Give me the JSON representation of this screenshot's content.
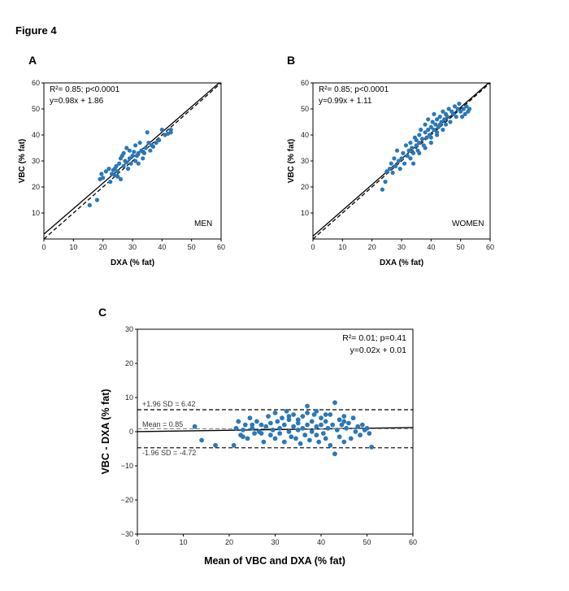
{
  "figure_title": "Figure 4",
  "chart_data": [
    {
      "panel": "A",
      "type": "scatter",
      "group_label": "MEN",
      "xlabel": "DXA (% fat)",
      "ylabel": "VBC (% fat)",
      "xlim": [
        0,
        60
      ],
      "ylim": [
        0,
        60
      ],
      "xticks": [
        0,
        10,
        20,
        30,
        40,
        50,
        60
      ],
      "yticks": [
        10,
        20,
        30,
        40,
        50,
        60
      ],
      "stats_line1": "R²= 0.85; p<0.0001",
      "stats_line2": "y=0.98x + 1.86",
      "fit": {
        "slope": 0.98,
        "intercept": 1.86,
        "style": "solid"
      },
      "identity": {
        "slope": 1,
        "intercept": 0,
        "style": "dashed"
      },
      "color": "#2b78b8",
      "points": [
        [
          15.5,
          13
        ],
        [
          18,
          15
        ],
        [
          19,
          23
        ],
        [
          19.5,
          25
        ],
        [
          20,
          23.5
        ],
        [
          21,
          26
        ],
        [
          22,
          27
        ],
        [
          22.5,
          22
        ],
        [
          23,
          25
        ],
        [
          23.5,
          26.5
        ],
        [
          24,
          27
        ],
        [
          24,
          24.5
        ],
        [
          24.5,
          28
        ],
        [
          25,
          26
        ],
        [
          25,
          24
        ],
        [
          25.5,
          29
        ],
        [
          26,
          23
        ],
        [
          26,
          31
        ],
        [
          26.5,
          32
        ],
        [
          27,
          28
        ],
        [
          27,
          33
        ],
        [
          27.5,
          30
        ],
        [
          28,
          29.5
        ],
        [
          28,
          35
        ],
        [
          28.5,
          27
        ],
        [
          29,
          31
        ],
        [
          29,
          34
        ],
        [
          29.5,
          29
        ],
        [
          30,
          32
        ],
        [
          30.5,
          33.5
        ],
        [
          31,
          30
        ],
        [
          31,
          36
        ],
        [
          31.5,
          32
        ],
        [
          32,
          33
        ],
        [
          32,
          29
        ],
        [
          32.5,
          37
        ],
        [
          33,
          34
        ],
        [
          33.5,
          31
        ],
        [
          34,
          33
        ],
        [
          34.5,
          35
        ],
        [
          35,
          41
        ],
        [
          35.5,
          37
        ],
        [
          36,
          34
        ],
        [
          36.5,
          36
        ],
        [
          37,
          35.5
        ],
        [
          38,
          37
        ],
        [
          39,
          38
        ],
        [
          40,
          42
        ],
        [
          41,
          40
        ],
        [
          42,
          40.5
        ],
        [
          43,
          42
        ],
        [
          43,
          41
        ]
      ]
    },
    {
      "panel": "B",
      "type": "scatter",
      "group_label": "WOMEN",
      "xlabel": "DXA (% fat)",
      "ylabel": "VBC (% fat)",
      "xlim": [
        0,
        60
      ],
      "ylim": [
        0,
        60
      ],
      "xticks": [
        0,
        10,
        20,
        30,
        40,
        50,
        60
      ],
      "yticks": [
        10,
        20,
        30,
        40,
        50,
        60
      ],
      "stats_line1": "R²= 0.85; p<0.0001",
      "stats_line2": "y=0.99x + 1.11",
      "fit": {
        "slope": 0.99,
        "intercept": 1.11,
        "style": "solid"
      },
      "identity": {
        "slope": 1,
        "intercept": 0,
        "style": "dashed"
      },
      "color": "#2b78b8",
      "points": [
        [
          23.5,
          19
        ],
        [
          24.5,
          22
        ],
        [
          25,
          26
        ],
        [
          26,
          27
        ],
        [
          26.5,
          29
        ],
        [
          27,
          25.5
        ],
        [
          27.5,
          31
        ],
        [
          28,
          28
        ],
        [
          28.5,
          34
        ],
        [
          29,
          30
        ],
        [
          29.5,
          27
        ],
        [
          30,
          31
        ],
        [
          30.5,
          33
        ],
        [
          31,
          29
        ],
        [
          31.5,
          36
        ],
        [
          32,
          32
        ],
        [
          32.5,
          34
        ],
        [
          33,
          37
        ],
        [
          33,
          31
        ],
        [
          33.5,
          35
        ],
        [
          34,
          33
        ],
        [
          34.5,
          39
        ],
        [
          35,
          36
        ],
        [
          35,
          38
        ],
        [
          35.5,
          34
        ],
        [
          36,
          40
        ],
        [
          36,
          37
        ],
        [
          36.5,
          42
        ],
        [
          37,
          38.5
        ],
        [
          37.5,
          36
        ],
        [
          38,
          41
        ],
        [
          38,
          44
        ],
        [
          38.5,
          39
        ],
        [
          39,
          42
        ],
        [
          39,
          46
        ],
        [
          39.5,
          40
        ],
        [
          40,
          43
        ],
        [
          40,
          37
        ],
        [
          40.5,
          45
        ],
        [
          41,
          42
        ],
        [
          41,
          48
        ],
        [
          41.5,
          44
        ],
        [
          42,
          40
        ],
        [
          42,
          46
        ],
        [
          42.5,
          43
        ],
        [
          43,
          47
        ],
        [
          43,
          44
        ],
        [
          43.5,
          45
        ],
        [
          44,
          49
        ],
        [
          44,
          42
        ],
        [
          44.5,
          46
        ],
        [
          45,
          48
        ],
        [
          45,
          44
        ],
        [
          45.5,
          47
        ],
        [
          46,
          50
        ],
        [
          46.5,
          45
        ],
        [
          47,
          49
        ],
        [
          47.5,
          48
        ],
        [
          48,
          51
        ],
        [
          48.5,
          47
        ],
        [
          49,
          50
        ],
        [
          49.5,
          52
        ],
        [
          50,
          49
        ],
        [
          50.5,
          47
        ],
        [
          51,
          50
        ],
        [
          51.5,
          48
        ],
        [
          52,
          51
        ],
        [
          52.5,
          49
        ],
        [
          53,
          50
        ],
        [
          34,
          29
        ],
        [
          36,
          33
        ],
        [
          38,
          35
        ],
        [
          40,
          39
        ],
        [
          42,
          41
        ]
      ]
    },
    {
      "panel": "C",
      "type": "scatter",
      "xlabel": "Mean of VBC and DXA (% fat)",
      "ylabel": "VBC - DXA (% fat)",
      "xlim": [
        0,
        60
      ],
      "ylim": [
        -30,
        30
      ],
      "xticks": [
        0,
        10,
        20,
        30,
        40,
        50,
        60
      ],
      "yticks": [
        -30,
        -20,
        -10,
        0,
        10,
        20,
        30
      ],
      "ytick_labels": [
        "−30",
        "−20",
        "−10",
        "0",
        "10",
        "20",
        "30"
      ],
      "stats_line1": "R²= 0.01; p=0.41",
      "stats_line2": "y=0.02x + 0.01",
      "upper_loa_label": "+1.96 SD = 6.42",
      "mean_label": "Mean = 0.85",
      "lower_loa_label": "-1.96 SD = -4.72",
      "upper_loa": 6.42,
      "mean": 0.85,
      "lower_loa": -4.72,
      "fit": {
        "slope": 0.02,
        "intercept": 0.01,
        "style": "solid"
      },
      "color": "#2b78b8",
      "points": [
        [
          12.5,
          1.5
        ],
        [
          14,
          -2.5
        ],
        [
          17,
          -4
        ],
        [
          21,
          -4
        ],
        [
          21.5,
          1
        ],
        [
          22,
          3
        ],
        [
          22.5,
          -1
        ],
        [
          23,
          0.5
        ],
        [
          23.5,
          2
        ],
        [
          24,
          -2
        ],
        [
          24.5,
          4
        ],
        [
          25,
          1
        ],
        [
          25.5,
          -0.5
        ],
        [
          26,
          3
        ],
        [
          26.5,
          0
        ],
        [
          27,
          2
        ],
        [
          27.5,
          -3
        ],
        [
          28,
          1.5
        ],
        [
          28.5,
          4.5
        ],
        [
          29,
          -1
        ],
        [
          29,
          2.5
        ],
        [
          29.5,
          0.5
        ],
        [
          30,
          5.5
        ],
        [
          30,
          -2
        ],
        [
          30.5,
          3
        ],
        [
          31,
          1
        ],
        [
          31,
          -0.5
        ],
        [
          31.5,
          4
        ],
        [
          32,
          2
        ],
        [
          32,
          -3
        ],
        [
          32.5,
          6
        ],
        [
          33,
          0
        ],
        [
          33,
          3.5
        ],
        [
          33.5,
          -1.5
        ],
        [
          34,
          1.5
        ],
        [
          34,
          5
        ],
        [
          34.5,
          -2
        ],
        [
          35,
          2.5
        ],
        [
          35,
          0.5
        ],
        [
          35.5,
          -3.5
        ],
        [
          36,
          4.5
        ],
        [
          36,
          1
        ],
        [
          36.5,
          -1
        ],
        [
          37,
          7.5
        ],
        [
          37,
          2
        ],
        [
          37.5,
          -2.5
        ],
        [
          38,
          3
        ],
        [
          38,
          0
        ],
        [
          38.5,
          5
        ],
        [
          39,
          -1
        ],
        [
          39,
          1.5
        ],
        [
          39.5,
          -3
        ],
        [
          40,
          2
        ],
        [
          40,
          4
        ],
        [
          40.5,
          -0.5
        ],
        [
          41,
          3
        ],
        [
          41,
          -2
        ],
        [
          41.5,
          1
        ],
        [
          42,
          5
        ],
        [
          42,
          -4
        ],
        [
          42.5,
          2
        ],
        [
          43,
          8.5
        ],
        [
          43,
          -6.5
        ],
        [
          43.5,
          0.5
        ],
        [
          44,
          3.5
        ],
        [
          44,
          -1.5
        ],
        [
          44.5,
          2
        ],
        [
          45,
          4.5
        ],
        [
          45,
          -3
        ],
        [
          45.5,
          1
        ],
        [
          46,
          2.5
        ],
        [
          46.5,
          -2
        ],
        [
          47,
          4
        ],
        [
          47.5,
          0
        ],
        [
          48,
          1.5
        ],
        [
          48.5,
          -1
        ],
        [
          49,
          2
        ],
        [
          49.5,
          0.5
        ],
        [
          50,
          1
        ],
        [
          50.5,
          -0.5
        ],
        [
          51,
          -4.5
        ],
        [
          23,
          -1.5
        ],
        [
          25,
          2
        ],
        [
          27,
          -0.5
        ],
        [
          33,
          4.5
        ],
        [
          35,
          3.5
        ],
        [
          37,
          5.5
        ],
        [
          39,
          6
        ],
        [
          41,
          5
        ],
        [
          45,
          3
        ]
      ]
    }
  ]
}
